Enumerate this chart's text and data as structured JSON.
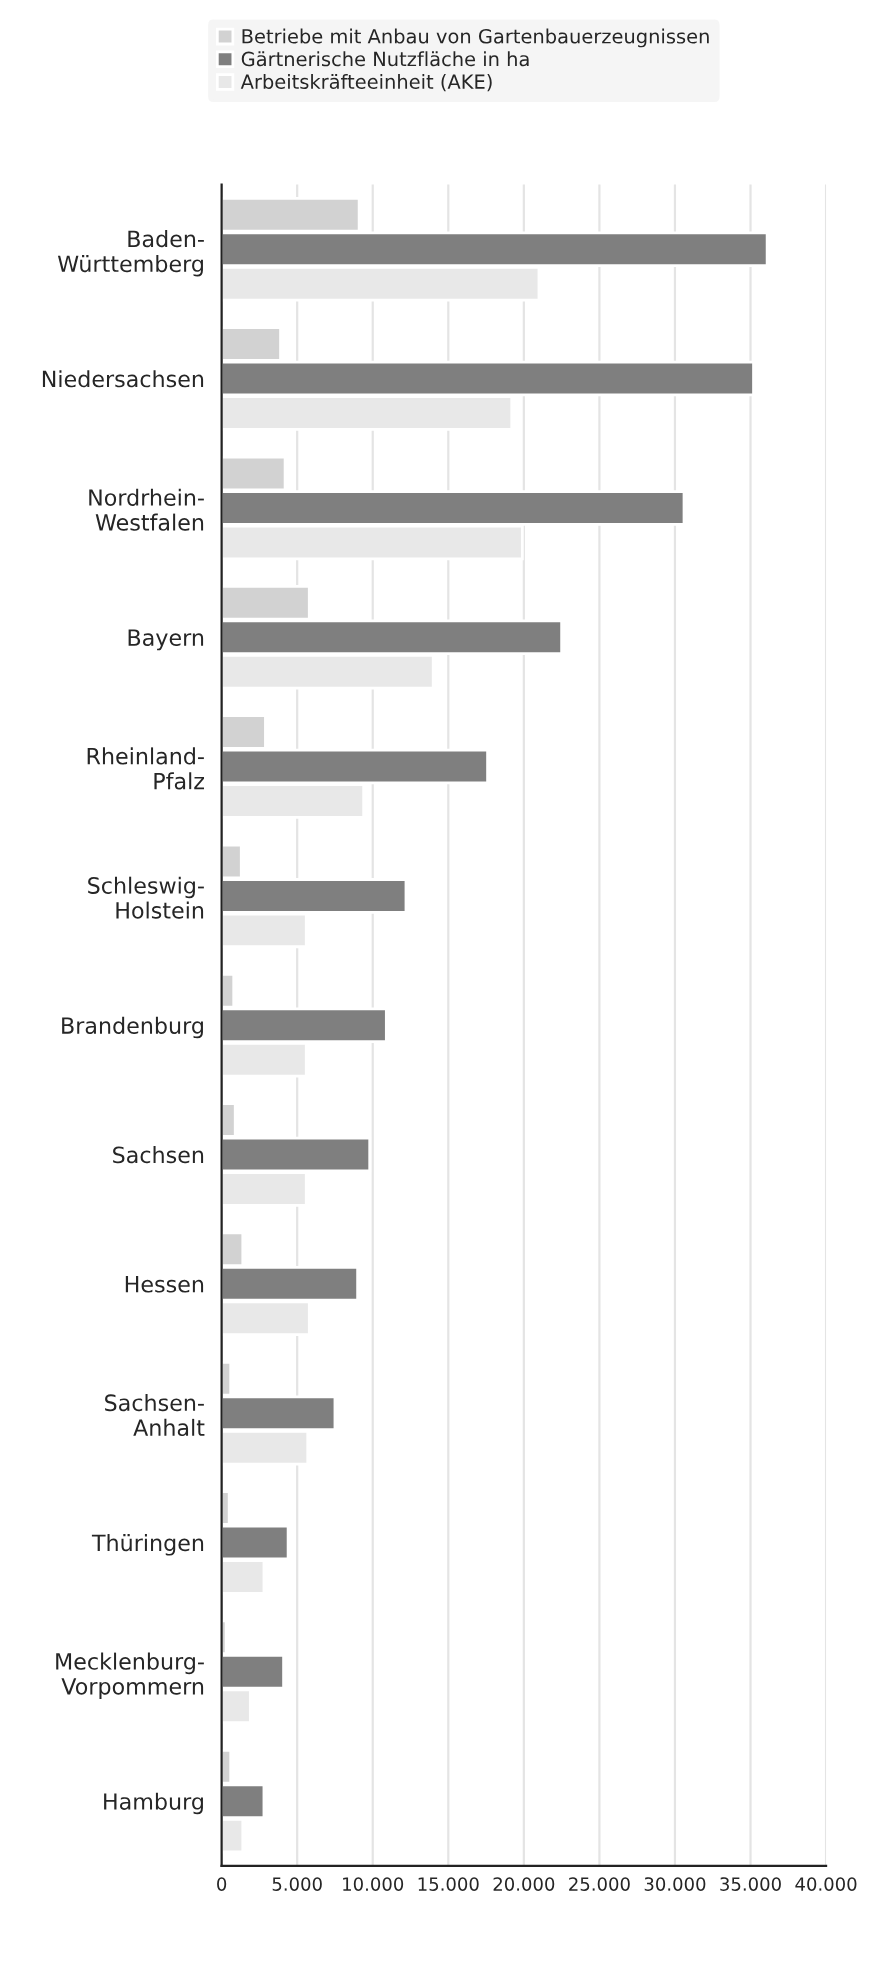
{
  "chart_data": {
    "type": "bar",
    "orientation": "horizontal",
    "categories": [
      "Baden-\nWürttemberg",
      "Niedersachsen",
      "Nordrhein-\nWestfalen",
      "Bayern",
      "Rheinland-\nPfalz",
      "Schleswig-\nHolstein",
      "Brandenburg",
      "Sachsen",
      "Hessen",
      "Sachsen-\nAnhalt",
      "Thüringen",
      "Mecklenburg-\nVorpommern",
      "Hamburg"
    ],
    "series": [
      {
        "name": "Betriebe mit Anbau von Gartenbauerzeugnissen",
        "color": "#d2d2d2",
        "values": [
          9100,
          3900,
          4200,
          5800,
          2900,
          1300,
          800,
          900,
          1400,
          600,
          500,
          300,
          600
        ]
      },
      {
        "name": "Gärtnerische Nutzfläche in ha",
        "color": "#7f7f7f",
        "values": [
          36100,
          35200,
          30600,
          22500,
          17600,
          12200,
          10900,
          9800,
          9000,
          7500,
          4400,
          4100,
          2800
        ]
      },
      {
        "name": "Arbeitskräfteeinheit (AKE)",
        "color": "#e8e8e8",
        "values": [
          21000,
          19200,
          19900,
          14000,
          9400,
          5600,
          5600,
          5600,
          5800,
          5700,
          2800,
          1900,
          1400
        ]
      }
    ],
    "xlim": [
      0,
      40000
    ],
    "xticks": [
      0,
      {
        "value": 5000,
        "label": "5.000"
      },
      {
        "value": 10000,
        "label": "10.000"
      },
      {
        "value": 15000,
        "label": "15.000"
      },
      {
        "value": 20000,
        "label": "20.000"
      },
      {
        "value": 25000,
        "label": "25.000"
      },
      {
        "value": 30000,
        "label": "30.000"
      },
      {
        "value": 35000,
        "label": "35.000"
      },
      {
        "value": 40000,
        "label": "40.000"
      }
    ],
    "grid": "x",
    "legend": "top"
  }
}
